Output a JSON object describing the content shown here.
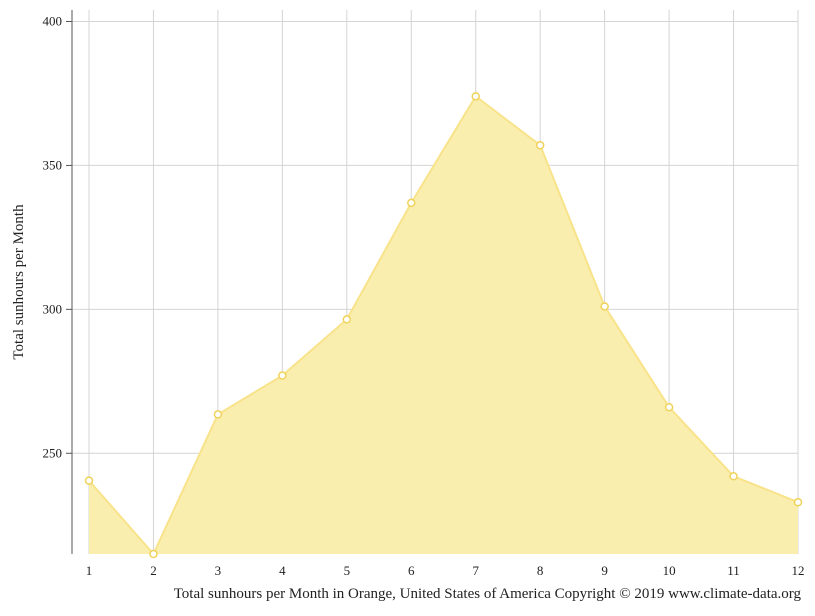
{
  "chart_data": {
    "type": "area",
    "x": [
      1,
      2,
      3,
      4,
      5,
      6,
      7,
      8,
      9,
      10,
      11,
      12
    ],
    "x_tick_labels": [
      "1",
      "2",
      "3",
      "4",
      "5",
      "6",
      "7",
      "8",
      "9",
      "10",
      "11",
      "12"
    ],
    "series": [
      {
        "values": [
          240.5,
          215,
          263.5,
          277,
          296.5,
          337,
          374,
          357,
          301,
          266,
          242,
          233
        ]
      }
    ],
    "ylabel": "Total sunhours per Month",
    "y_ticks": [
      250,
      300,
      350,
      400
    ],
    "y_tick_labels": [
      "250",
      "300",
      "350",
      "400"
    ],
    "ylim": [
      215,
      404
    ],
    "xlim": [
      1,
      12
    ],
    "grid": true,
    "caption": "Total sunhours per Month in Orange, United States of America Copyright © 2019 www.climate-data.org",
    "colors": {
      "area_fill": "#faeeaf",
      "line": "#f8e38a",
      "marker_stroke": "#efd25a",
      "marker_fill": "#ffffff",
      "grid": "#d4d4d4",
      "axis": "#555555"
    }
  }
}
